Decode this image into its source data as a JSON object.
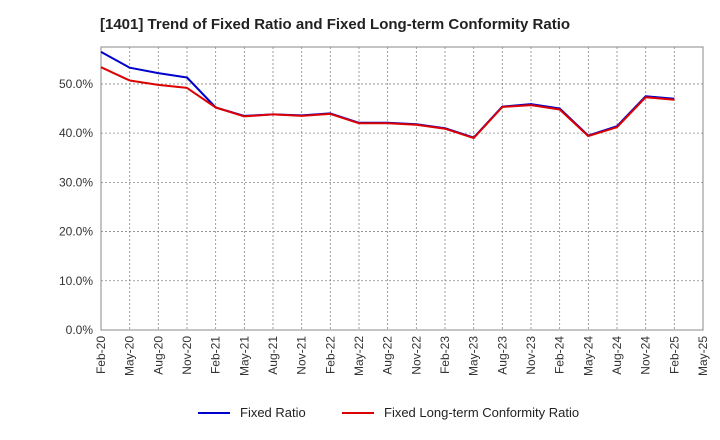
{
  "chart_data": {
    "type": "line",
    "title": "[1401]  Trend of Fixed Ratio and Fixed Long-term Conformity Ratio",
    "xlabel": "",
    "ylabel": "",
    "ylim": [
      0,
      57.5
    ],
    "y_ticks": [
      "0.0%",
      "10.0%",
      "20.0%",
      "30.0%",
      "40.0%",
      "50.0%"
    ],
    "y_tick_values": [
      0,
      10,
      20,
      30,
      40,
      50
    ],
    "x_tick_labels": [
      "Feb-20",
      "May-20",
      "Aug-20",
      "Nov-20",
      "Feb-21",
      "May-21",
      "Aug-21",
      "Nov-21",
      "Feb-22",
      "May-22",
      "Aug-22",
      "Nov-22",
      "Feb-23",
      "May-23",
      "Aug-23",
      "Nov-23",
      "Feb-24",
      "May-24",
      "Aug-24",
      "Nov-24",
      "Feb-25",
      "May-25"
    ],
    "x": [
      "Feb-20",
      "May-20",
      "Aug-20",
      "Nov-20",
      "Feb-21",
      "May-21",
      "Aug-21",
      "Nov-21",
      "Feb-22",
      "May-22",
      "Aug-22",
      "Nov-22",
      "Feb-23",
      "May-23",
      "Aug-23",
      "Nov-23",
      "Feb-24",
      "May-24",
      "Aug-24",
      "Nov-24",
      "Feb-25"
    ],
    "grid": true,
    "legend_position": "bottom",
    "series": [
      {
        "name": "Fixed Ratio",
        "color": "#0000cc",
        "values": [
          56.5,
          53.3,
          52.2,
          51.3,
          45.2,
          43.5,
          43.8,
          43.6,
          44.0,
          42.1,
          42.1,
          41.8,
          41.0,
          39.1,
          45.4,
          45.9,
          45.0,
          39.5,
          41.4,
          47.5,
          47.0
        ]
      },
      {
        "name": "Fixed Long-term Conformity Ratio",
        "color": "#dd0000",
        "values": [
          53.4,
          50.7,
          49.8,
          49.2,
          45.2,
          43.4,
          43.8,
          43.5,
          43.9,
          42.0,
          42.0,
          41.7,
          40.9,
          39.0,
          45.3,
          45.7,
          44.8,
          39.4,
          41.2,
          47.3,
          46.8
        ]
      }
    ]
  }
}
